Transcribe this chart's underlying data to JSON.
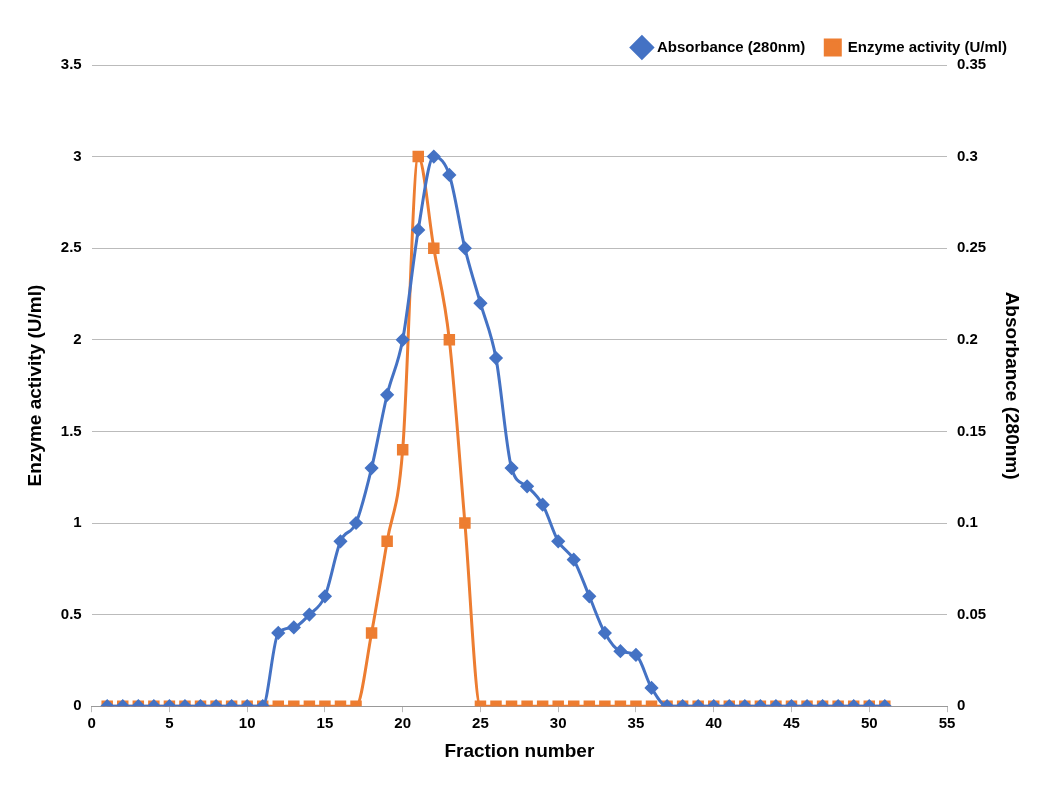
{
  "chart_data": {
    "type": "line",
    "xlabel": "Fraction number",
    "ylabel": "Enzyme activity (U/ml)",
    "y2label": "Absorbance (280nm)",
    "x": [
      1,
      2,
      3,
      4,
      5,
      6,
      7,
      8,
      9,
      10,
      11,
      12,
      13,
      14,
      15,
      16,
      17,
      18,
      19,
      20,
      21,
      22,
      23,
      24,
      25,
      26,
      27,
      28,
      29,
      30,
      31,
      32,
      33,
      34,
      35,
      36,
      37,
      38,
      39,
      40,
      41,
      42,
      43,
      44,
      45,
      46,
      47,
      48,
      49,
      50,
      51
    ],
    "series": [
      {
        "name": "Enzyme activity (U/ml)",
        "color": "#ed7d31",
        "marker": "square",
        "values": [
          0,
          0,
          0,
          0,
          0,
          0,
          0,
          0,
          0,
          0,
          0,
          0,
          0,
          0,
          0,
          0,
          0,
          0.4,
          0.9,
          1.4,
          3,
          2.5,
          2,
          1,
          0,
          0,
          0,
          0,
          0,
          0,
          0,
          0,
          0,
          0,
          0,
          0,
          0,
          0,
          0,
          0,
          0,
          0,
          0,
          0,
          0,
          0,
          0,
          0,
          0,
          0,
          0
        ]
      },
      {
        "name": "Absorbance (280nm)",
        "color": "#4472c4",
        "marker": "diamond",
        "axis": "y2",
        "values": [
          0,
          0,
          0,
          0,
          0,
          0,
          0,
          0,
          0,
          0,
          0,
          0.04,
          0.043,
          0.05,
          0.06,
          0.09,
          0.1,
          0.13,
          0.17,
          0.2,
          0.26,
          0.3,
          0.29,
          0.25,
          0.22,
          0.19,
          0.13,
          0.12,
          0.11,
          0.09,
          0.08,
          0.06,
          0.04,
          0.03,
          0.028,
          0.01,
          0,
          0,
          0,
          0,
          0,
          0,
          0,
          0,
          0,
          0,
          0,
          0,
          0,
          0,
          0
        ]
      }
    ],
    "xlim": [
      0,
      55
    ],
    "xticks": [
      0,
      5,
      10,
      15,
      20,
      25,
      30,
      35,
      40,
      45,
      50,
      55
    ],
    "ylim": [
      0,
      3.5
    ],
    "yticks": [
      0,
      0.5,
      1,
      1.5,
      2,
      2.5,
      3,
      3.5
    ],
    "y2lim": [
      0,
      0.35
    ],
    "y2ticks": [
      0,
      0.05,
      0.1,
      0.15,
      0.2,
      0.25,
      0.3,
      0.35
    ],
    "grid": "y",
    "legend": "top right"
  }
}
